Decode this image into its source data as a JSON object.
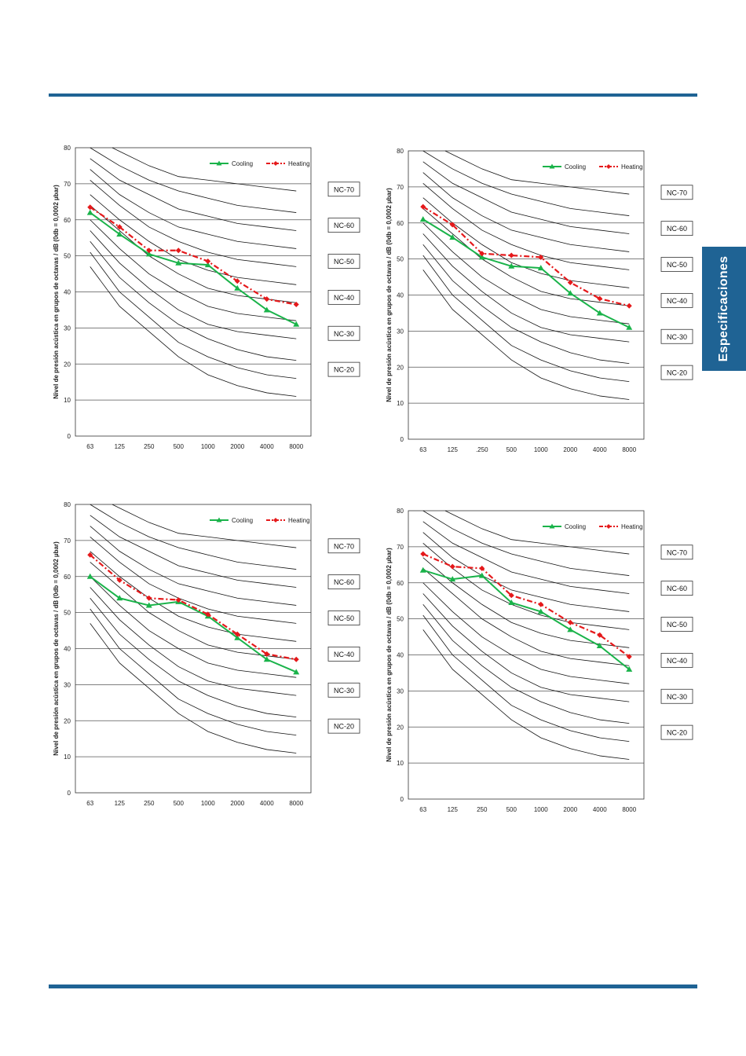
{
  "header": {
    "rule_color": "#1f6394"
  },
  "side_tab": {
    "label": "Especificaciones"
  },
  "colors": {
    "cooling": "#1ab34a",
    "heating": "#e5191b",
    "curve": "#111111",
    "grid": "#555555"
  },
  "chart_data": [
    {
      "type": "line",
      "categories": [
        "63",
        "125",
        "250",
        "500",
        "1000",
        "2000",
        "4000",
        "8000"
      ],
      "ylim": [
        0,
        80
      ],
      "yticks": [
        "0",
        "10",
        "20",
        "30",
        "40",
        "50",
        "60",
        "70",
        "80"
      ],
      "ylabel": "Nivel de presión acústica en grupos de octavas / dB (0db = 0,0002 µbar)",
      "legend_position": "top",
      "series": [
        {
          "name": "Cooling",
          "values": [
            62,
            56,
            50.5,
            48,
            47.5,
            41,
            35,
            31
          ]
        },
        {
          "name": "Heating",
          "values": [
            63.5,
            58,
            51.5,
            51.5,
            48.5,
            43,
            38,
            36.5
          ]
        }
      ],
      "nc_labels": [
        "NC-70",
        "NC-60",
        "NC-50",
        "NC-40",
        "NC-30",
        "NC-20"
      ]
    },
    {
      "type": "line",
      "categories": [
        "63",
        "125",
        ".250",
        "500",
        "1000",
        "2000",
        "4000",
        "8000"
      ],
      "ylim": [
        0,
        80
      ],
      "yticks": [
        "0",
        "10",
        "20",
        "30",
        "40",
        "50",
        "60",
        "70",
        "80"
      ],
      "ylabel": "Nivel de presión acústica en grupos de octavas / dB (0db = 0,0002 µbar)",
      "legend_position": "top",
      "series": [
        {
          "name": "Cooling",
          "values": [
            61,
            56,
            50.5,
            48,
            47.5,
            40.5,
            35,
            31
          ]
        },
        {
          "name": "Heating",
          "values": [
            64.5,
            59.5,
            51.5,
            51,
            50.5,
            43.5,
            39,
            37
          ]
        }
      ],
      "nc_labels": [
        "NC-70",
        "NC-60",
        "NC-50",
        "NC-40",
        "NC-30",
        "NC-20"
      ]
    },
    {
      "type": "line",
      "categories": [
        "63",
        "125",
        "250",
        "500",
        "1000",
        "2000",
        "4000",
        "8000"
      ],
      "ylim": [
        0,
        80
      ],
      "yticks": [
        "0",
        "10",
        "20",
        "30",
        "40",
        "50",
        "60",
        "70",
        "80"
      ],
      "ylabel": "Nivel de presión acústica en grupos de octavas / dB (0db = 0,0002 µbar)",
      "legend_position": "top",
      "series": [
        {
          "name": "Cooling",
          "values": [
            60,
            54,
            52,
            53,
            49,
            43,
            37,
            33.5
          ]
        },
        {
          "name": "Heating",
          "values": [
            66,
            59,
            54,
            53.5,
            49.5,
            44,
            38.5,
            37
          ]
        }
      ],
      "nc_labels": [
        "NC-70",
        "NC-60",
        "NC-50",
        "NC-40",
        "NC-30",
        "NC-20"
      ]
    },
    {
      "type": "line",
      "categories": [
        "63",
        "125",
        "250",
        "500",
        "1000",
        "2000",
        "4000",
        "8000"
      ],
      "ylim": [
        0,
        80
      ],
      "yticks": [
        "0",
        "10",
        "20",
        "30",
        "40",
        "50",
        "60",
        "70",
        "80"
      ],
      "ylabel": "Nivel de presión acústica en grupos de octavas / dB (0db = 0,0002 µbar)",
      "legend_position": "top",
      "series": [
        {
          "name": "Cooling",
          "values": [
            63.5,
            61,
            62,
            54.5,
            52,
            47,
            42.5,
            36
          ]
        },
        {
          "name": "Heating",
          "values": [
            68,
            64.5,
            64,
            56.5,
            54,
            49,
            45.5,
            39.5
          ]
        }
      ],
      "nc_labels": [
        "NC-70",
        "NC-60",
        "NC-50",
        "NC-40",
        "NC-30",
        "NC-20"
      ]
    }
  ],
  "nc_curves": [
    {
      "name": "NC-70",
      "values": [
        83,
        79,
        75,
        72,
        71,
        70,
        69,
        68
      ]
    },
    {
      "name": "NC-65",
      "values": [
        80,
        75,
        71,
        68,
        66,
        64,
        63,
        62
      ]
    },
    {
      "name": "NC-60",
      "values": [
        77,
        71,
        67,
        63,
        61,
        59,
        58,
        57
      ]
    },
    {
      "name": "NC-55",
      "values": [
        74,
        67,
        62,
        58,
        56,
        54,
        53,
        52
      ]
    },
    {
      "name": "NC-50",
      "values": [
        71,
        64,
        58,
        54,
        51,
        49,
        48,
        47
      ]
    },
    {
      "name": "NC-45",
      "values": [
        67,
        60,
        54,
        49,
        46,
        44,
        43,
        42
      ]
    },
    {
      "name": "NC-40",
      "values": [
        64,
        57,
        50,
        45,
        41,
        39,
        38,
        37
      ]
    },
    {
      "name": "NC-35",
      "values": [
        60,
        52,
        45,
        40,
        36,
        34,
        33,
        32
      ]
    },
    {
      "name": "NC-30",
      "values": [
        57,
        48,
        41,
        35,
        31,
        29,
        28,
        27
      ]
    },
    {
      "name": "NC-25",
      "values": [
        54,
        44,
        37,
        31,
        27,
        24,
        22,
        21
      ]
    },
    {
      "name": "NC-20",
      "values": [
        51,
        40,
        33,
        26,
        22,
        19,
        17,
        16
      ]
    },
    {
      "name": "NC-15",
      "values": [
        47,
        36,
        29,
        22,
        17,
        14,
        12,
        11
      ]
    }
  ],
  "nc_label_levels": [
    70,
    60,
    50,
    40,
    30,
    20
  ]
}
